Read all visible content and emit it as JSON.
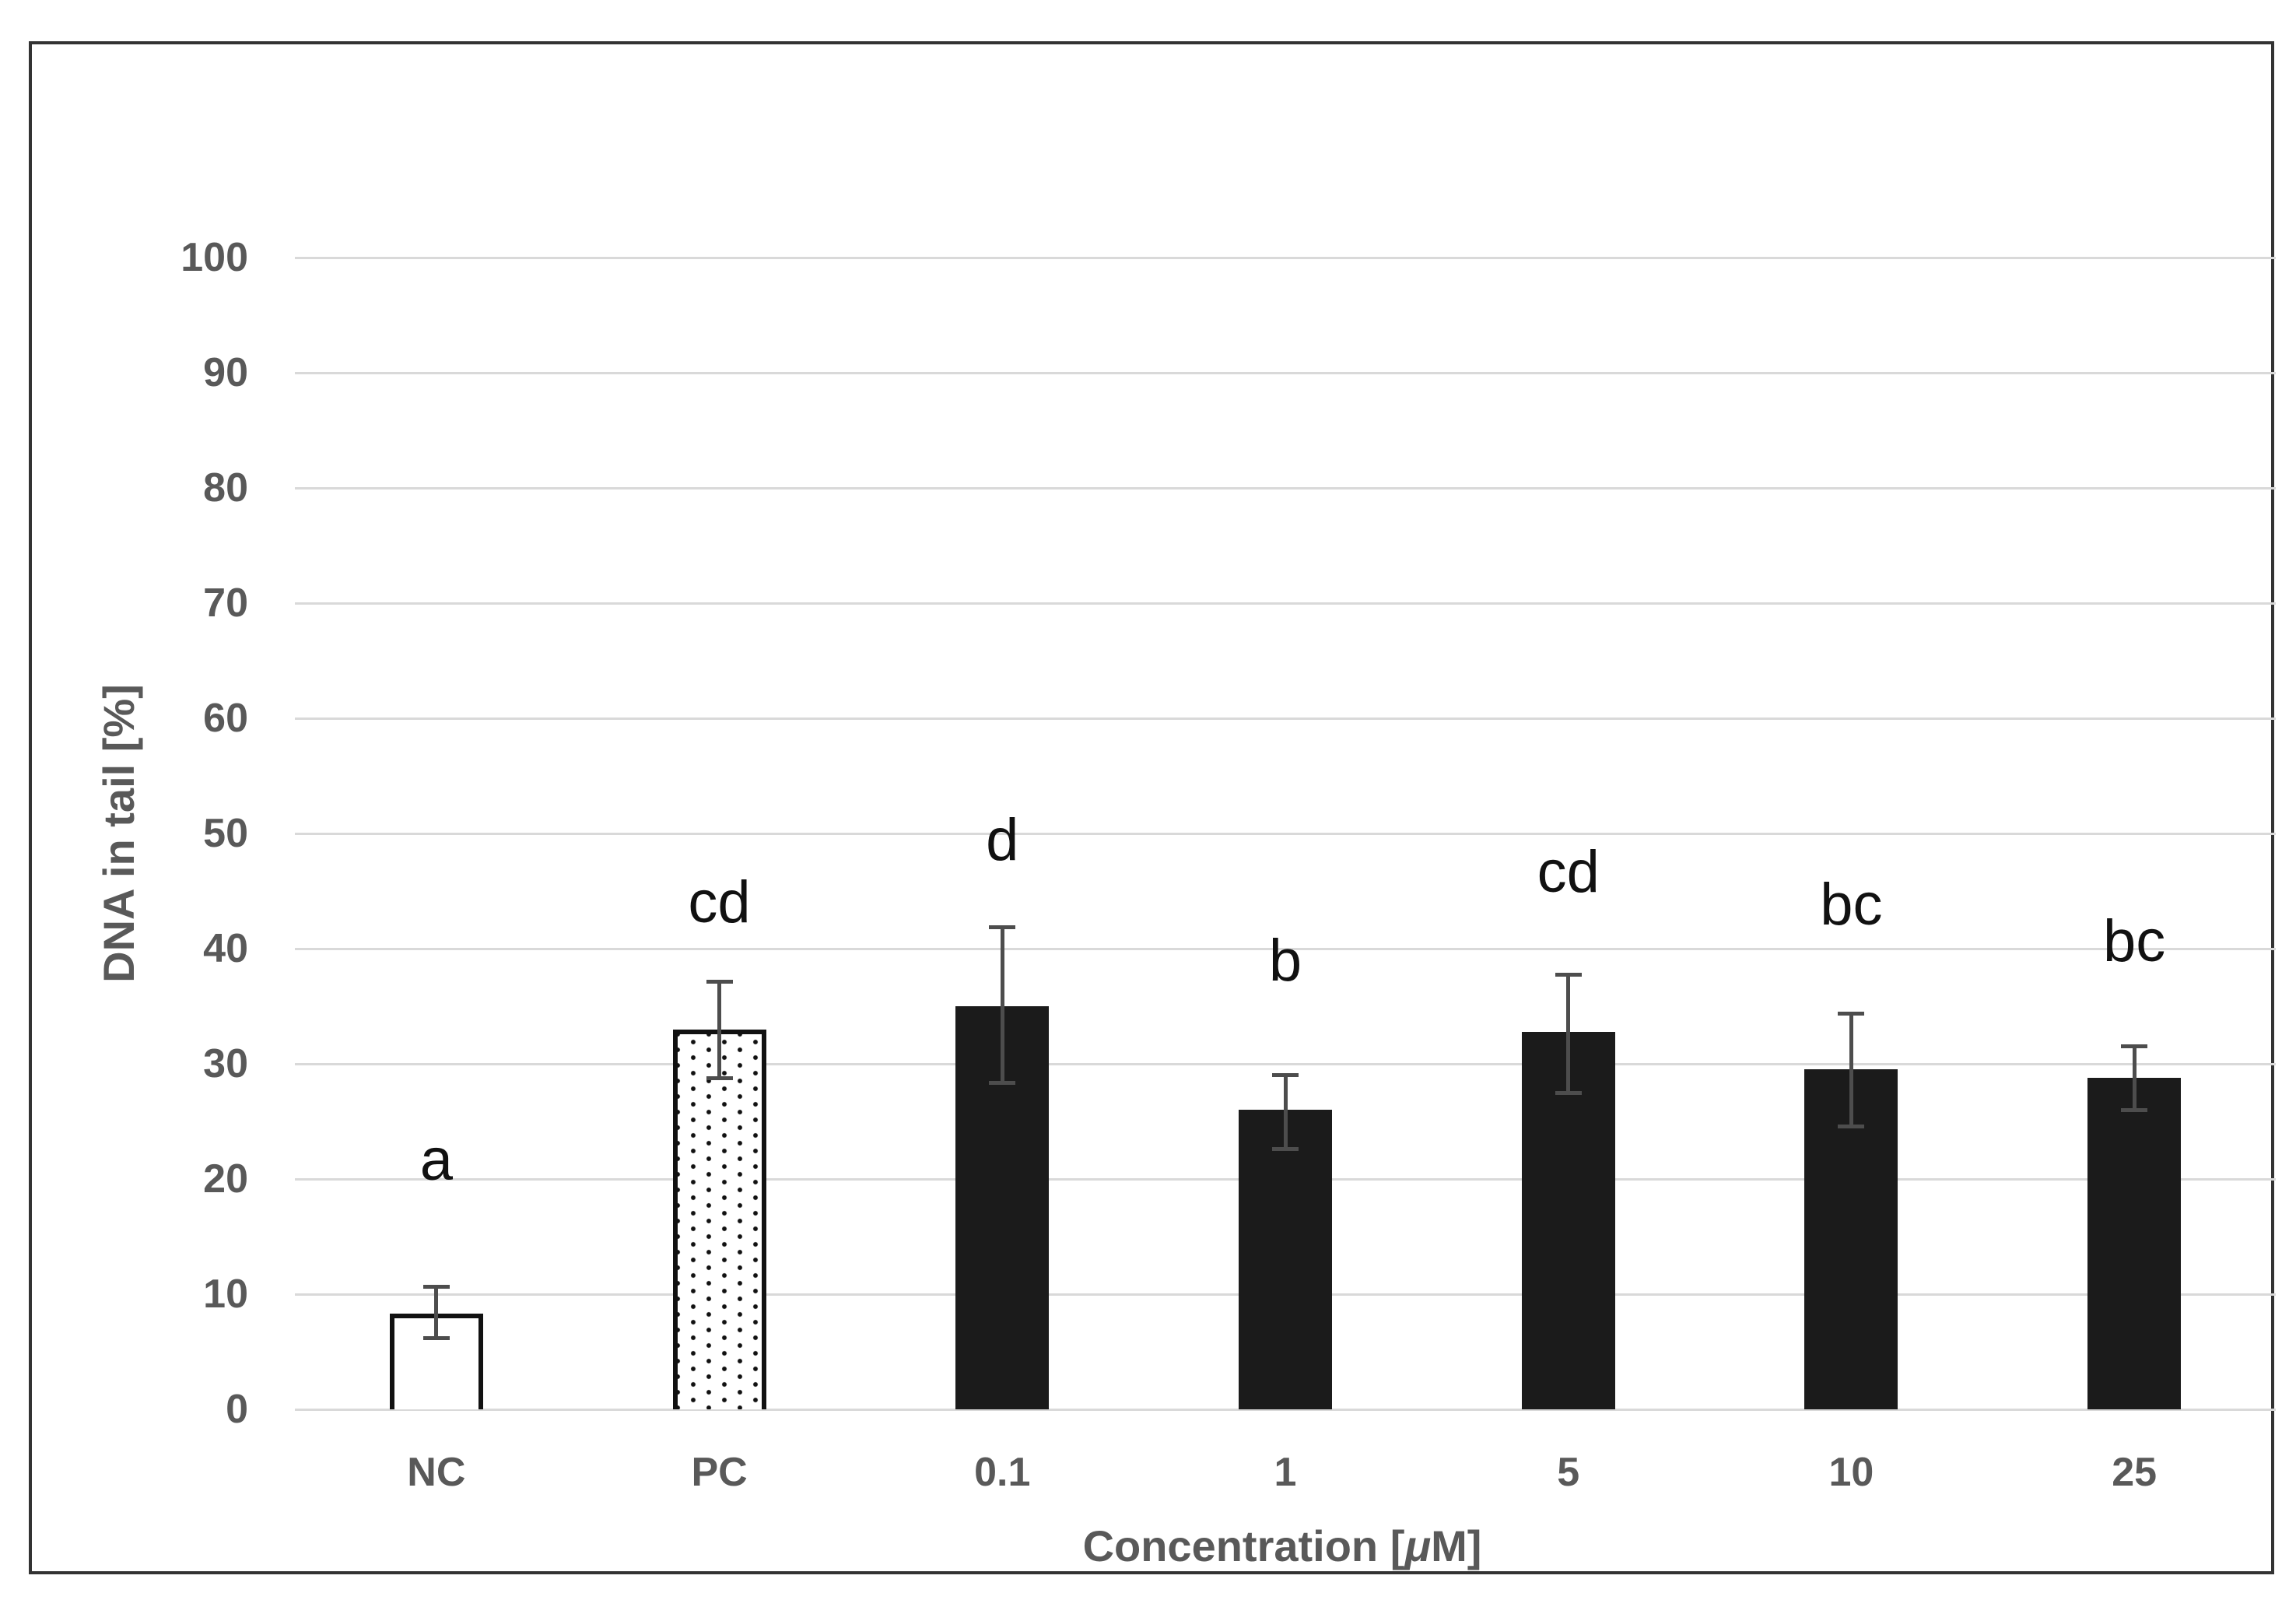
{
  "figure": {
    "background": "#ffffff",
    "frame_color": "#333333"
  },
  "chart_data": {
    "type": "bar",
    "title": "",
    "xlabel": "Concentration [μM]",
    "ylabel": "DNA in tail [%]",
    "ylim": [
      0,
      100
    ],
    "ytick_step": 10,
    "ytick_labels": [
      "0",
      "10",
      "20",
      "30",
      "40",
      "50",
      "60",
      "70",
      "80",
      "90",
      "100"
    ],
    "grid": "horizontal",
    "legend_position": "none",
    "categories": [
      "NC",
      "PC",
      "0.1",
      "1",
      "5",
      "10",
      "25"
    ],
    "series": [
      {
        "name": "DNA in tail [%]",
        "values": [
          8.3,
          33.0,
          35.0,
          26.0,
          32.8,
          29.5,
          28.8
        ],
        "error_plus": [
          2.5,
          4.3,
          7.0,
          3.2,
          5.1,
          5.0,
          2.9
        ],
        "error_minus": [
          2.3,
          4.4,
          6.8,
          3.6,
          5.5,
          5.1,
          3.0
        ]
      }
    ],
    "bar_styles": [
      "white-outline",
      "dotted",
      "solid-black",
      "solid-black",
      "solid-black",
      "solid-black",
      "solid-black"
    ],
    "significance_letters": [
      {
        "category": "NC",
        "text": "a",
        "y": 21.6
      },
      {
        "category": "PC",
        "text": "cd",
        "y": 44.0
      },
      {
        "category": "0.1",
        "text": "d",
        "y": 49.4
      },
      {
        "category": "1",
        "text": "b",
        "y": 38.9
      },
      {
        "category": "5",
        "text": "cd",
        "y": 46.6
      },
      {
        "category": "10",
        "text": "bc",
        "y": 43.8
      },
      {
        "category": "25",
        "text": "bc",
        "y": 40.6
      }
    ],
    "colors": {
      "bar_fill_black": "#1b1b1b",
      "bar_outline": "#111111",
      "error_bar": "#4d4d4d",
      "gridline": "#d9d9d9",
      "axis_text": "#595959",
      "letter_text": "#111111"
    }
  }
}
